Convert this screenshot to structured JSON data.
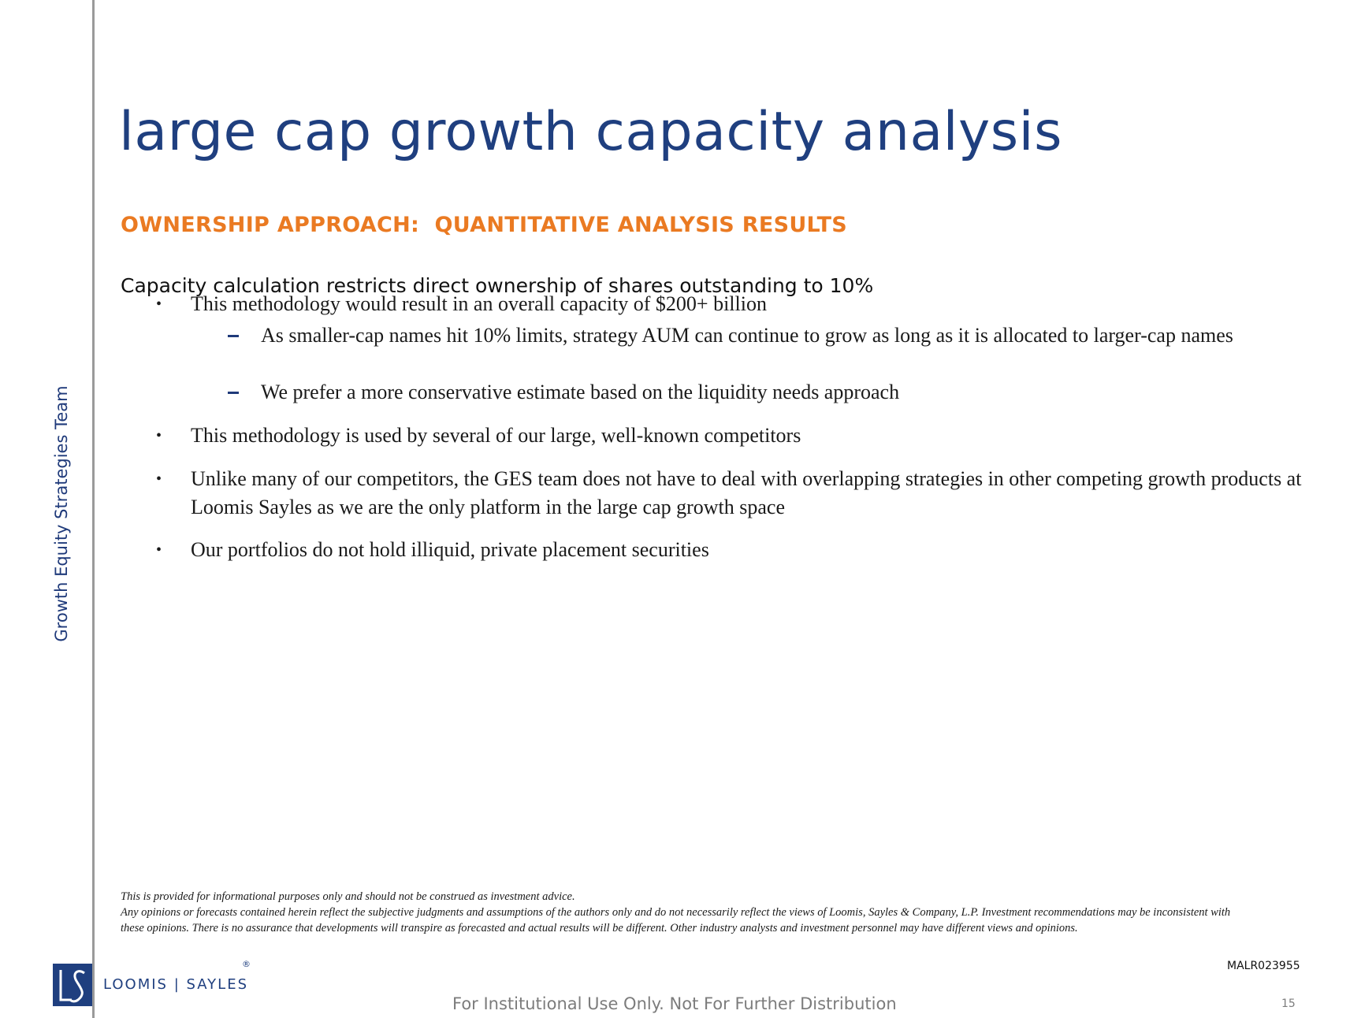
{
  "side_label": "Growth Equity Strategies Team",
  "title": "large cap growth capacity analysis",
  "subtitle": "OWNERSHIP APPROACH:  QUANTITATIVE ANALYSIS RESULTS",
  "lead": "Capacity calculation restricts direct ownership of shares outstanding to 10%",
  "bullets": [
    {
      "text": "This methodology would result in an overall capacity of $200+ billion"
    },
    {
      "text": "As smaller-cap names hit 10% limits, strategy AUM can continue to grow as long as it is allocated to larger-cap names"
    },
    {
      "text": "We prefer a more conservative estimate based on the liquidity needs approach"
    },
    {
      "text": "This methodology is used by several of our large, well-known competitors"
    },
    {
      "text": "Unlike many of our competitors, the GES team does not have to deal with overlapping strategies in other competing growth products at Loomis Sayles as we are the only platform in the large cap growth space"
    },
    {
      "text": "Our portfolios do not hold illiquid, private placement securities"
    }
  ],
  "bullet_symbol": "•",
  "disclaimer": {
    "line1": "This is provided for informational purposes only and should not be construed as investment advice.",
    "line2": "Any opinions or forecasts contained herein reflect the subjective judgments and assumptions of the authors only and do not necessarily reflect the views of Loomis, Sayles & Company, L.P. Investment recommendations may be inconsistent with these opinions. There is no assurance that developments will transpire as forecasted and actual results will be different. Other industry analysts and investment personnel may have different views and opinions."
  },
  "logo": {
    "name": "LOOMIS | SAYLES",
    "registered": "®",
    "color": "#1f3f7f"
  },
  "bates_number": "MALR023955",
  "footer_note": "For Institutional Use Only. Not For Further Distribution",
  "page_number": "15",
  "colors": {
    "title": "#1f3f7f",
    "subtitle": "#ea7a22",
    "side_rule": "#9a9a9a"
  }
}
